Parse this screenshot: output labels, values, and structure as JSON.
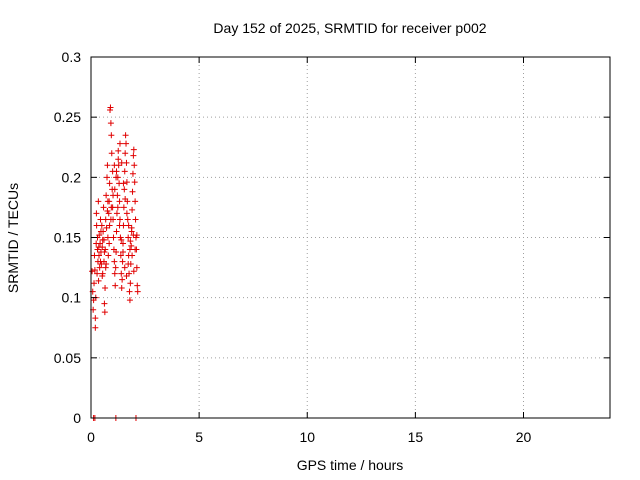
{
  "chart_data": {
    "type": "scatter",
    "title": "Day 152 of 2025, SRMTID for receiver p002",
    "xlabel": "GPS time / hours",
    "ylabel": "SRMTID / TECUs",
    "xlim": [
      0,
      24
    ],
    "ylim": [
      0,
      0.3
    ],
    "xticks": [
      0,
      5,
      10,
      15,
      20
    ],
    "xtick_labels": [
      "0",
      "5",
      "10",
      "15",
      "20"
    ],
    "yticks": [
      0,
      0.05,
      0.1,
      0.15,
      0.2,
      0.25,
      0.3
    ],
    "ytick_labels": [
      "0",
      "0.05",
      "0.1",
      "0.15",
      "0.2",
      "0.25",
      "0.3"
    ],
    "grid": true,
    "marker": "+",
    "color": "#e00000",
    "series": [
      {
        "points": [
          [
            0.05,
            0.122
          ],
          [
            0.08,
            0.105
          ],
          [
            0.1,
            0.09
          ],
          [
            0.12,
            0.098
          ],
          [
            0.14,
            0.112
          ],
          [
            0.16,
            0.135
          ],
          [
            0.18,
            0.123
          ],
          [
            0.2,
            0.075
          ],
          [
            0.2,
            0.083
          ],
          [
            0.22,
            0.1
          ],
          [
            0.24,
            0.145
          ],
          [
            0.25,
            0.17
          ],
          [
            0.26,
            0.16
          ],
          [
            0.28,
            0.12
          ],
          [
            0.3,
            0.14
          ],
          [
            0.32,
            0.13
          ],
          [
            0.34,
            0.18
          ],
          [
            0.35,
            0.114
          ],
          [
            0.37,
            0.135
          ],
          [
            0.38,
            0.152
          ],
          [
            0.4,
            0.125
          ],
          [
            0.42,
            0.145
          ],
          [
            0.44,
            0.165
          ],
          [
            0.46,
            0.138
          ],
          [
            0.48,
            0.128
          ],
          [
            0.5,
            0.16
          ],
          [
            0.52,
            0.142
          ],
          [
            0.54,
            0.12
          ],
          [
            0.56,
            0.155
          ],
          [
            0.58,
            0.175
          ],
          [
            0.6,
            0.13
          ],
          [
            0.62,
            0.095
          ],
          [
            0.64,
            0.088
          ],
          [
            0.65,
            0.108
          ],
          [
            0.66,
            0.14
          ],
          [
            0.68,
            0.125
          ],
          [
            0.7,
            0.185
          ],
          [
            0.72,
            0.158
          ],
          [
            0.74,
            0.2
          ],
          [
            0.76,
            0.21
          ],
          [
            0.78,
            0.18
          ],
          [
            0.8,
            0.135
          ],
          [
            0.82,
            0.17
          ],
          [
            0.84,
            0.145
          ],
          [
            0.86,
            0.195
          ],
          [
            0.88,
            0.256
          ],
          [
            0.9,
            0.258
          ],
          [
            0.92,
            0.245
          ],
          [
            0.94,
            0.235
          ],
          [
            0.96,
            0.22
          ],
          [
            0.98,
            0.19
          ],
          [
            1.0,
            0.175
          ],
          [
            1.02,
            0.165
          ],
          [
            1.04,
            0.15
          ],
          [
            1.06,
            0.14
          ],
          [
            1.08,
            0.13
          ],
          [
            1.1,
            0.12
          ],
          [
            1.12,
            0.11
          ],
          [
            1.14,
            0.125
          ],
          [
            1.16,
            0.138
          ],
          [
            1.18,
            0.155
          ],
          [
            1.2,
            0.17
          ],
          [
            1.22,
            0.185
          ],
          [
            1.24,
            0.2
          ],
          [
            1.26,
            0.215
          ],
          [
            1.28,
            0.21
          ],
          [
            1.3,
            0.195
          ],
          [
            1.32,
            0.18
          ],
          [
            1.34,
            0.165
          ],
          [
            1.36,
            0.15
          ],
          [
            1.38,
            0.135
          ],
          [
            1.4,
            0.12
          ],
          [
            1.42,
            0.108
          ],
          [
            1.44,
            0.115
          ],
          [
            1.46,
            0.13
          ],
          [
            1.48,
            0.145
          ],
          [
            1.5,
            0.16
          ],
          [
            1.52,
            0.175
          ],
          [
            1.54,
            0.19
          ],
          [
            1.56,
            0.205
          ],
          [
            1.58,
            0.22
          ],
          [
            1.6,
            0.235
          ],
          [
            1.62,
            0.228
          ],
          [
            1.64,
            0.212
          ],
          [
            1.66,
            0.196
          ],
          [
            1.68,
            0.18
          ],
          [
            1.7,
            0.165
          ],
          [
            1.72,
            0.15
          ],
          [
            1.74,
            0.135
          ],
          [
            1.76,
            0.12
          ],
          [
            1.78,
            0.105
          ],
          [
            1.8,
            0.098
          ],
          [
            1.82,
            0.112
          ],
          [
            1.84,
            0.128
          ],
          [
            1.86,
            0.143
          ],
          [
            1.88,
            0.158
          ],
          [
            1.9,
            0.173
          ],
          [
            1.92,
            0.188
          ],
          [
            1.94,
            0.203
          ],
          [
            1.96,
            0.218
          ],
          [
            1.98,
            0.223
          ],
          [
            2.0,
            0.21
          ],
          [
            2.02,
            0.196
          ],
          [
            2.04,
            0.18
          ],
          [
            2.06,
            0.165
          ],
          [
            2.08,
            0.15
          ],
          [
            2.1,
            0.14
          ],
          [
            2.12,
            0.125
          ],
          [
            2.14,
            0.11
          ],
          [
            2.16,
            0.105
          ],
          [
            0.3,
            0.15
          ],
          [
            0.36,
            0.142
          ],
          [
            0.44,
            0.13
          ],
          [
            0.52,
            0.118
          ],
          [
            0.6,
            0.148
          ],
          [
            0.68,
            0.165
          ],
          [
            0.76,
            0.172
          ],
          [
            0.84,
            0.18
          ],
          [
            0.92,
            0.165
          ],
          [
            1.0,
            0.205
          ],
          [
            1.08,
            0.21
          ],
          [
            1.16,
            0.2
          ],
          [
            1.24,
            0.175
          ],
          [
            1.32,
            0.16
          ],
          [
            1.4,
            0.148
          ],
          [
            1.48,
            0.138
          ],
          [
            1.56,
            0.125
          ],
          [
            1.64,
            0.118
          ],
          [
            1.72,
            0.128
          ],
          [
            1.8,
            0.14
          ],
          [
            1.88,
            0.155
          ],
          [
            1.96,
            0.152
          ],
          [
            2.04,
            0.14
          ],
          [
            2.12,
            0.152
          ],
          [
            0.46,
            0.155
          ],
          [
            0.54,
            0.148
          ],
          [
            0.62,
            0.138
          ],
          [
            0.7,
            0.128
          ],
          [
            0.78,
            0.15
          ],
          [
            0.86,
            0.16
          ],
          [
            0.94,
            0.175
          ],
          [
            1.02,
            0.185
          ],
          [
            1.1,
            0.19
          ],
          [
            1.18,
            0.205
          ],
          [
            1.26,
            0.222
          ],
          [
            1.34,
            0.228
          ],
          [
            1.42,
            0.212
          ],
          [
            1.5,
            0.195
          ],
          [
            1.58,
            0.182
          ],
          [
            1.66,
            0.17
          ],
          [
            1.74,
            0.16
          ],
          [
            1.82,
            0.147
          ],
          [
            1.9,
            0.135
          ],
          [
            1.98,
            0.122
          ],
          [
            0.12,
            0.0
          ],
          [
            0.18,
            0.0
          ],
          [
            1.15,
            0.0
          ],
          [
            2.08,
            0.0
          ]
        ]
      }
    ]
  }
}
